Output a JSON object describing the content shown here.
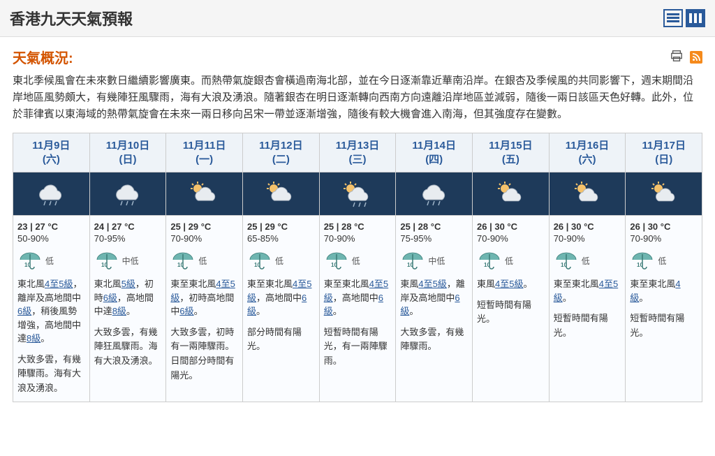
{
  "page_title": "香港九天天氣預報",
  "summary_label": "天氣概況:",
  "summary_text": "東北季候風會在未來數日繼續影響廣東。而熱帶氣旋銀杏會橫過南海北部，並在今日逐漸靠近華南沿岸。在銀杏及季候風的共同影響下，週末期間沿岸地區風勢頗大，有幾陣狂風驟雨，海有大浪及湧浪。隨著銀杏在明日逐漸轉向西南方向遠離沿岸地區並減弱，隨後一兩日該區天色好轉。此外，位於菲律賓以東海域的熱帶氣旋會在未來一兩日移向呂宋一帶並逐漸增強，隨後有較大機會進入南海，但其強度存在變數。",
  "colors": {
    "accent": "#2a5a9a",
    "summary_heading": "#d35400",
    "header_bg": "#f5f5f5",
    "day_date_bg": "#eef3f8",
    "day_icon_bg": "#1e3a5a",
    "border": "#cccccc"
  },
  "icons": {
    "print": "print-icon",
    "rss": "rss-icon",
    "list_view": "list-view-icon",
    "grid_view": "grid-view-icon"
  },
  "days": [
    {
      "date": "11月9日",
      "weekday": "(六)",
      "weather_icon": "cloud-rain",
      "temp": "23 | 27 °C",
      "humid": "50-90%",
      "psr": "低",
      "wind_parts": [
        "東北風",
        {
          "link": "4至5級"
        },
        "，離岸及高地間中",
        {
          "link": "6級"
        },
        "，稍後風勢增強，高地間中達",
        {
          "link": "8級"
        },
        "。"
      ],
      "desc": "大致多雲，有幾陣驟雨。海有大浪及湧浪。"
    },
    {
      "date": "11月10日",
      "weekday": "(日)",
      "weather_icon": "cloud-rain",
      "temp": "24 | 27 °C",
      "humid": "70-95%",
      "psr": "中低",
      "wind_parts": [
        "東北風",
        {
          "link": "5級"
        },
        "，初時",
        {
          "link": "6級"
        },
        "，高地間中達",
        {
          "link": "8級"
        },
        "。"
      ],
      "desc": "大致多雲，有幾陣狂風驟雨。海有大浪及湧浪。"
    },
    {
      "date": "11月11日",
      "weekday": "(一)",
      "weather_icon": "sun-cloud",
      "temp": "25 | 29 °C",
      "humid": "70-90%",
      "psr": "低",
      "wind_parts": [
        "東至東北風",
        {
          "link": "4至5級"
        },
        "，初時高地間中",
        {
          "link": "6級"
        },
        "。"
      ],
      "desc": "大致多雲，初時有一兩陣驟雨。日間部分時間有陽光。"
    },
    {
      "date": "11月12日",
      "weekday": "(二)",
      "weather_icon": "sun-cloud",
      "temp": "25 | 29 °C",
      "humid": "65-85%",
      "psr": "低",
      "wind_parts": [
        "東至東北風",
        {
          "link": "4至5級"
        },
        "，高地間中",
        {
          "link": "6級"
        },
        "。"
      ],
      "desc": "部分時間有陽光。"
    },
    {
      "date": "11月13日",
      "weekday": "(三)",
      "weather_icon": "sun-cloud-rain",
      "temp": "25 | 28 °C",
      "humid": "70-90%",
      "psr": "低",
      "wind_parts": [
        "東至東北風",
        {
          "link": "4至5級"
        },
        "，高地間中",
        {
          "link": "6級"
        },
        "。"
      ],
      "desc": "短暫時間有陽光，有一兩陣驟雨。"
    },
    {
      "date": "11月14日",
      "weekday": "(四)",
      "weather_icon": "cloud-rain",
      "temp": "25 | 28 °C",
      "humid": "75-95%",
      "psr": "中低",
      "wind_parts": [
        "東風",
        {
          "link": "4至5級"
        },
        "，離岸及高地間中",
        {
          "link": "6級"
        },
        "。"
      ],
      "desc": "大致多雲，有幾陣驟雨。"
    },
    {
      "date": "11月15日",
      "weekday": "(五)",
      "weather_icon": "sun-cloud2",
      "temp": "26 | 30 °C",
      "humid": "70-90%",
      "psr": "低",
      "wind_parts": [
        "東風",
        {
          "link": "4至5級"
        },
        "。"
      ],
      "desc": "短暫時間有陽光。"
    },
    {
      "date": "11月16日",
      "weekday": "(六)",
      "weather_icon": "sun-cloud2",
      "temp": "26 | 30 °C",
      "humid": "70-90%",
      "psr": "低",
      "wind_parts": [
        "東至東北風",
        {
          "link": "4至5級"
        },
        "。"
      ],
      "desc": "短暫時間有陽光。"
    },
    {
      "date": "11月17日",
      "weekday": "(日)",
      "weather_icon": "sun-cloud2",
      "temp": "26 | 30 °C",
      "humid": "70-90%",
      "psr": "低",
      "wind_parts": [
        "東至東北風",
        {
          "link": "4級"
        },
        "。"
      ],
      "desc": "短暫時間有陽光。"
    }
  ]
}
